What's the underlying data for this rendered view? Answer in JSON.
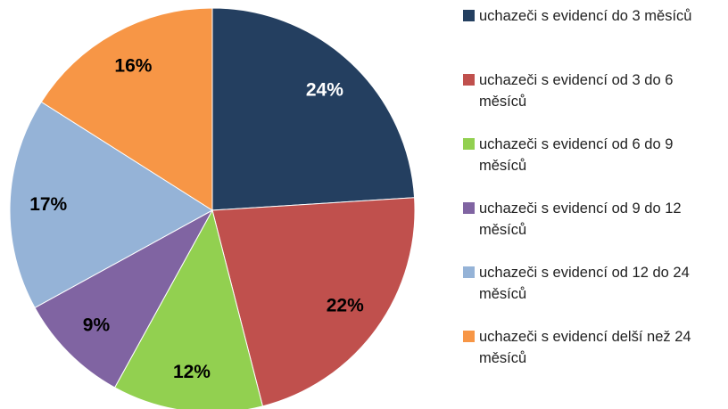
{
  "chart_data": {
    "type": "pie",
    "categories": [
      "uchazeči s evidencí do 3 měsíců",
      "uchazeči s evidencí od 3 do 6 měsíců",
      "uchazeči s evidencí od 6 do 9 měsíců",
      "uchazeči s evidencí od 9 do 12 měsíců",
      "uchazeči s evidencí od 12 do 24 měsíců",
      "uchazeči s evidencí delší než 24 měsíců"
    ],
    "values": [
      24,
      22,
      12,
      9,
      17,
      16
    ],
    "value_labels": [
      "24%",
      "22%",
      "12%",
      "9%",
      "17%",
      "16%"
    ],
    "colors": [
      "#243f60",
      "#c0504d",
      "#92d050",
      "#8064a2",
      "#95b3d7",
      "#f79646"
    ],
    "legend": "right"
  }
}
